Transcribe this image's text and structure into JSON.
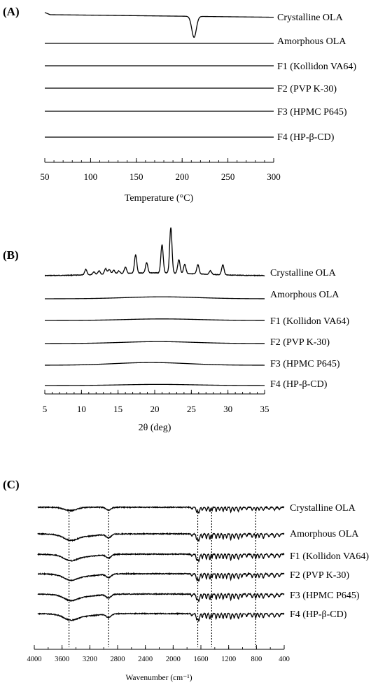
{
  "chart_data": [
    {
      "panel": "(A)",
      "type": "line",
      "xlabel": "Temperature (°C)",
      "xlim": [
        50,
        300
      ],
      "x_ticks": [
        50,
        100,
        150,
        200,
        250,
        300
      ],
      "series": [
        {
          "name": "Crystalline OLA",
          "features": [
            {
              "kind": "endotherm",
              "center": 213,
              "width": 2.5,
              "depth": 1
            }
          ]
        },
        {
          "name": "Amorphous OLA",
          "features": []
        },
        {
          "name": "F1 (Kollidon VA64)",
          "features": []
        },
        {
          "name": "F2 (PVP K-30)",
          "features": []
        },
        {
          "name": "F3 (HPMC P645)",
          "features": []
        },
        {
          "name": "F4 (HP-β-CD)",
          "features": []
        }
      ]
    },
    {
      "panel": "(B)",
      "type": "line",
      "xlabel": "2θ (deg)",
      "xlim": [
        5,
        35
      ],
      "x_ticks": [
        5,
        10,
        15,
        20,
        25,
        30,
        35
      ],
      "series": [
        {
          "name": "Crystalline OLA",
          "peaks": [
            [
              10.6,
              0.12
            ],
            [
              11.7,
              0.06
            ],
            [
              12.4,
              0.08
            ],
            [
              13.3,
              0.12
            ],
            [
              13.8,
              0.1
            ],
            [
              14.4,
              0.08
            ],
            [
              15.1,
              0.06
            ],
            [
              16.0,
              0.14
            ],
            [
              17.4,
              0.4
            ],
            [
              18.9,
              0.22
            ],
            [
              21.0,
              0.62
            ],
            [
              22.2,
              1.0
            ],
            [
              23.3,
              0.3
            ],
            [
              24.1,
              0.2
            ],
            [
              25.9,
              0.2
            ],
            [
              27.6,
              0.08
            ],
            [
              29.3,
              0.22
            ]
          ]
        },
        {
          "name": "Amorphous OLA",
          "halo": {
            "center": 21,
            "height": 0.05
          }
        },
        {
          "name": "F1 (Kollidon VA64)",
          "halo": {
            "center": 21,
            "height": 0.04
          }
        },
        {
          "name": "F2 (PVP K-30)",
          "halo": {
            "center": 20.5,
            "height": 0.05
          }
        },
        {
          "name": "F3 (HPMC P645)",
          "halo": {
            "center": 19.5,
            "height": 0.07
          }
        },
        {
          "name": "F4 (HP-β-CD)",
          "halo": {
            "center": 20.5,
            "height": 0.03
          }
        }
      ]
    },
    {
      "panel": "(C)",
      "type": "line",
      "xlabel": "Wavenumber (cm⁻¹)",
      "xlim": [
        4000,
        400
      ],
      "x_ticks": [
        4000,
        3600,
        3200,
        2800,
        2400,
        2000,
        1600,
        1200,
        800,
        400
      ],
      "reference_lines": [
        3500,
        2930,
        1645,
        1445,
        810
      ],
      "series": [
        {
          "name": "Crystalline OLA"
        },
        {
          "name": "Amorphous OLA"
        },
        {
          "name": "F1 (Kollidon VA64)"
        },
        {
          "name": "F2 (PVP K-30)"
        },
        {
          "name": "F3 (HPMC P645)"
        },
        {
          "name": "F4 (HP-β-CD)"
        }
      ]
    }
  ]
}
